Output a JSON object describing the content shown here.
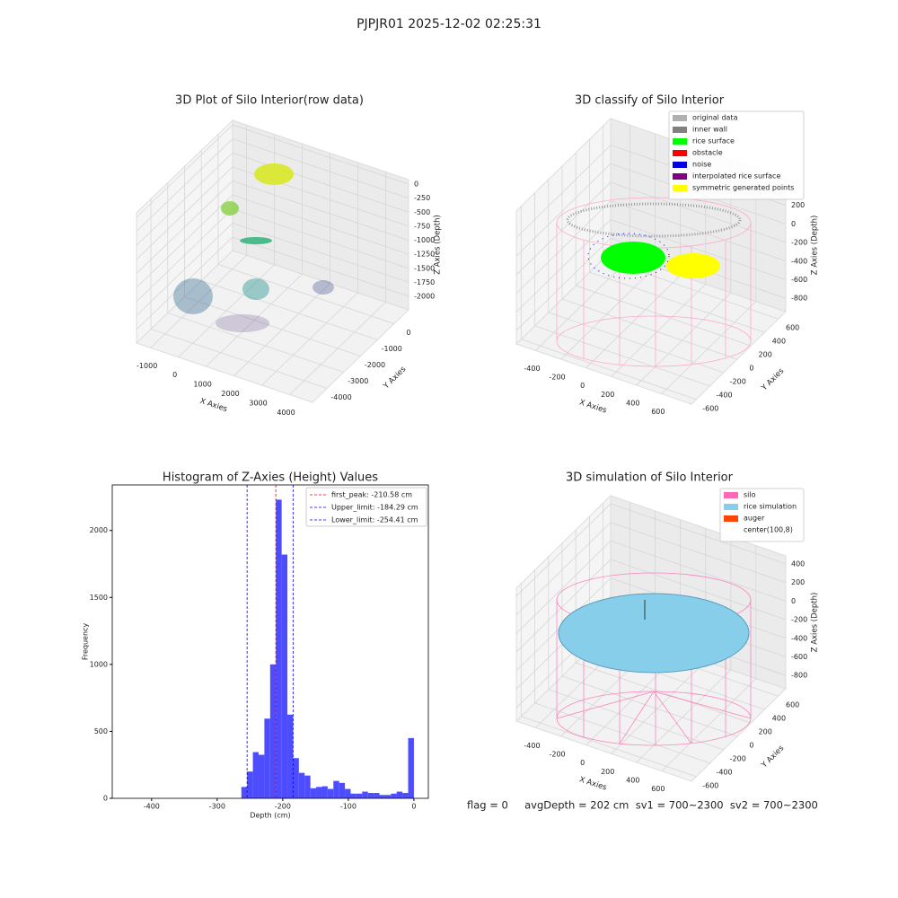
{
  "title": "PJPJR01 2025-12-02 02:25:31",
  "footer": "flag = 0     avgDepth = 202 cm  sv1 = 700~2300  sv2 = 700~2300",
  "chart_data": [
    {
      "type": "scatter3d",
      "title": "3D Plot of Silo Interior(row data)",
      "xlabel": "X Axies",
      "ylabel": "Y Axies",
      "zlabel": "Z Axies (Depth)",
      "xlim": [
        -1506,
        4823
      ],
      "ylim": [
        -4857,
        857
      ],
      "zlim": [
        -2240,
        80
      ],
      "xticks": [
        -1000,
        0,
        1000,
        2000,
        3000,
        4000
      ],
      "yticks": [
        -4000,
        -3000,
        -2000,
        -1000,
        0
      ],
      "zticks": [
        -2000,
        -1750,
        -1500,
        -1250,
        -1000,
        -750,
        -500,
        -250,
        0
      ]
    },
    {
      "type": "scatter3d",
      "title": "3D classify of Silo Interior",
      "xlabel": "X Axies",
      "ylabel": "Y Axies",
      "zlabel": "Z Axies (Depth)",
      "xlim": [
        -553,
        836
      ],
      "ylim": [
        -670,
        710
      ],
      "zlim": [
        -943,
        486
      ],
      "xticks": [
        -400,
        -200,
        0,
        200,
        400,
        600
      ],
      "yticks": [
        -600,
        -400,
        -200,
        0,
        200,
        400,
        600
      ],
      "zticks": [
        -800,
        -600,
        -400,
        -200,
        0,
        200
      ],
      "legend": [
        {
          "name": "original data",
          "color": "#b0b0b0"
        },
        {
          "name": "inner wall",
          "color": "#808080"
        },
        {
          "name": "rice surface",
          "color": "#00ff00"
        },
        {
          "name": "obstacle",
          "color": "#ff0000"
        },
        {
          "name": "noise",
          "color": "#0000e0"
        },
        {
          "name": "interpolated rice surface",
          "color": "#800080"
        },
        {
          "name": "symmetric generated points",
          "color": "#ffff00"
        }
      ]
    },
    {
      "type": "histogram",
      "title": "Histogram of Z-Axies (Height) Values",
      "xlabel": "Depth (cm)",
      "ylabel": "Frequency",
      "color": "#4d4dff",
      "xlim": [
        -460,
        22
      ],
      "ylim": [
        0,
        2340
      ],
      "xticks": [
        -400,
        -300,
        -200,
        -100,
        0
      ],
      "yticks": [
        0,
        500,
        1000,
        1500,
        2000
      ],
      "bins": [
        -263.1,
        -254.33,
        -245.56,
        -236.79,
        -228.02,
        -219.25,
        -210.48,
        -201.71,
        -192.94,
        -184.17,
        -175.4,
        -166.63,
        -157.86,
        -149.09,
        -140.32,
        -131.55,
        -122.78,
        -114.01,
        -105.24,
        -96.47,
        -87.7,
        -78.93,
        -70.16,
        -61.39,
        -52.62,
        -43.85,
        -35.08,
        -26.31,
        -17.54,
        -8.77,
        0
      ],
      "counts": [
        85,
        200,
        345,
        325,
        595,
        1000,
        2230,
        1820,
        625,
        300,
        190,
        170,
        75,
        85,
        90,
        70,
        130,
        115,
        70,
        35,
        35,
        50,
        40,
        40,
        25,
        25,
        35,
        50,
        40,
        450
      ],
      "vlines": [
        {
          "name": "first_peak: -210.58 cm",
          "value": -210.58,
          "color": "#ff0000"
        },
        {
          "name": "Upper_limit: -184.29 cm",
          "value": -184.29,
          "color": "#0000ff"
        },
        {
          "name": "Lower_limit: -254.41 cm",
          "value": -254.41,
          "color": "#0000ff"
        }
      ]
    },
    {
      "type": "surface3d",
      "title": "3D simulation of Silo Interior",
      "xlabel": "X Axies",
      "ylabel": "Y Axies",
      "zlabel": "Z Axies (Depth)",
      "xlim": [
        -553,
        836
      ],
      "ylim": [
        -670,
        710
      ],
      "zlim": [
        -943,
        486
      ],
      "xticks": [
        -400,
        -200,
        0,
        200,
        400,
        600
      ],
      "yticks": [
        -600,
        -400,
        -200,
        0,
        200,
        400,
        600
      ],
      "zticks": [
        -800,
        -600,
        -400,
        -200,
        0,
        200,
        400
      ],
      "legend": [
        {
          "name": "silo",
          "color": "#ff69b4"
        },
        {
          "name": "rice simulation",
          "color": "#87ceeb"
        },
        {
          "name": "auger",
          "color": "#ff4500"
        },
        {
          "name": "center(100,8)",
          "color": "#ffffff"
        }
      ]
    }
  ]
}
